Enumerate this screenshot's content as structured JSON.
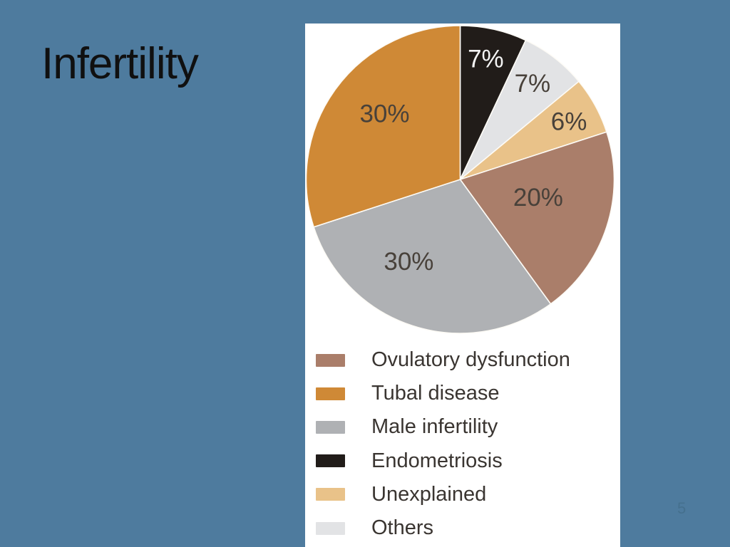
{
  "slide": {
    "title": "Infertility",
    "page_number": "5"
  },
  "colors": {
    "background": "#4e7b9e",
    "panel": "#ffffff",
    "title_text": "#101010",
    "legend_text": "#3a3531",
    "page_number_text": "#45708e",
    "slice_separator": "#fdfbf6"
  },
  "chart_data": {
    "type": "pie",
    "title": "",
    "start_angle_deg": 0,
    "direction": "clockwise",
    "legend_position": "bottom",
    "slices": [
      {
        "label": "Endometriosis",
        "value": 7,
        "pct_label": "7%",
        "color": "#211c19",
        "label_color": "#f4f4f4",
        "label_angle_deg": 12,
        "label_radius_frac": 0.8
      },
      {
        "label": "Others",
        "value": 7,
        "pct_label": "7%",
        "color": "#e2e3e5",
        "label_color": "#48413a",
        "label_angle_deg": 37,
        "label_radius_frac": 0.78
      },
      {
        "label": "Unexplained",
        "value": 6,
        "pct_label": "6%",
        "color": "#e9c289",
        "label_color": "#48413a",
        "label_angle_deg": 62,
        "label_radius_frac": 0.8
      },
      {
        "label": "Ovulatory dysfunction",
        "value": 20,
        "pct_label": "20%",
        "color": "#aa7e6a",
        "label_color": "#48413a",
        "label_angle_deg": 103,
        "label_radius_frac": 0.52
      },
      {
        "label": "Male infertility",
        "value": 30,
        "pct_label": "30%",
        "color": "#afb1b4",
        "label_color": "#48413a",
        "label_angle_deg": 212,
        "label_radius_frac": 0.63
      },
      {
        "label": "Tubal disease",
        "value": 30,
        "pct_label": "30%",
        "color": "#cf8936",
        "label_color": "#48413a",
        "label_angle_deg": 311,
        "label_radius_frac": 0.65
      }
    ],
    "legend": [
      {
        "label": "Ovulatory dysfunction",
        "color": "#aa7e6a"
      },
      {
        "label": "Tubal disease",
        "color": "#cf8936"
      },
      {
        "label": "Male infertility",
        "color": "#afb1b4"
      },
      {
        "label": "Endometriosis",
        "color": "#211c19"
      },
      {
        "label": "Unexplained",
        "color": "#e9c289"
      },
      {
        "label": "Others",
        "color": "#e2e3e5"
      }
    ]
  }
}
